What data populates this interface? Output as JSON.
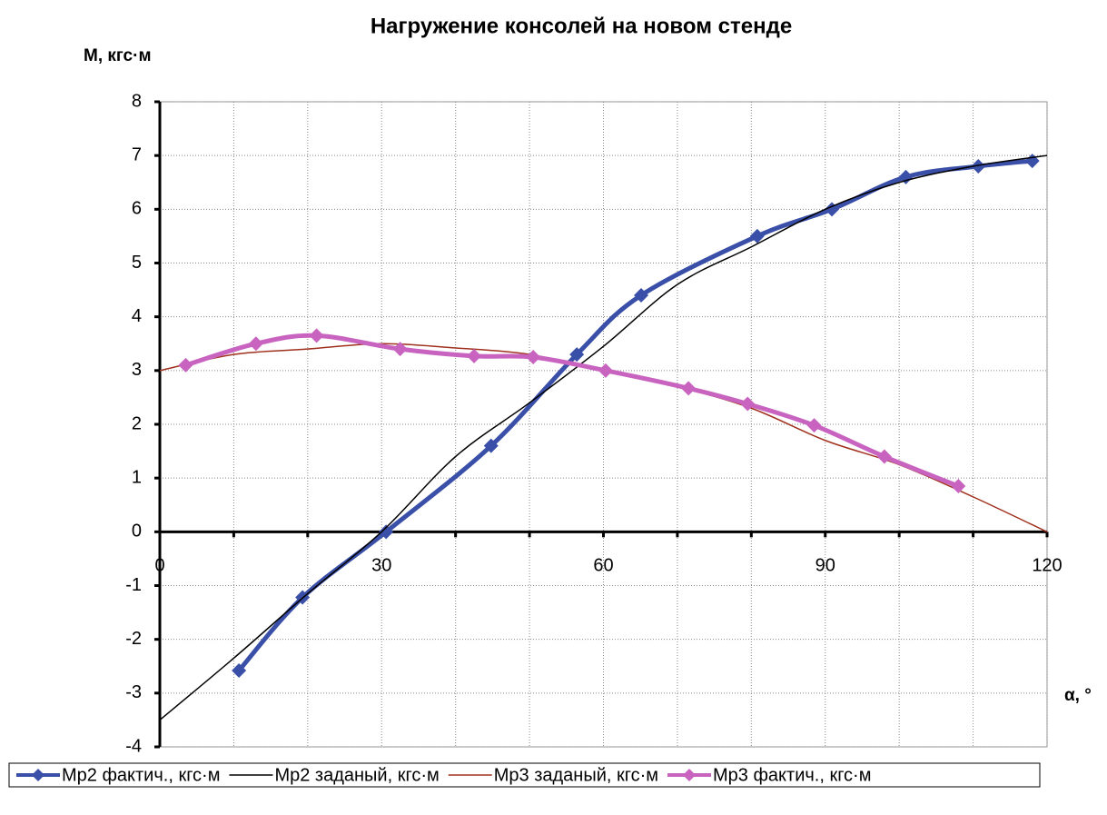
{
  "chart_data": {
    "type": "line",
    "title": "Нагружение консолей на новом стенде",
    "y_label": "М, кгс·м",
    "x_label": "α, °",
    "xlim": [
      0,
      120
    ],
    "xticks": [
      0,
      30,
      60,
      90,
      120
    ],
    "x_minor_ticks": [
      10,
      20,
      40,
      50,
      70,
      80,
      100,
      110
    ],
    "ylim": [
      -4,
      8
    ],
    "yticks": [
      -4,
      -3,
      -2,
      -1,
      0,
      1,
      2,
      3,
      4,
      5,
      6,
      7,
      8
    ],
    "grid": true,
    "legend": "bottom",
    "series": [
      {
        "name": "Мр2 фактич., кгс·м",
        "color": "#3a4fa8",
        "width": 5,
        "marker": "diamond",
        "x": [
          10.7,
          19.3,
          30.6,
          44.8,
          56.4,
          65.1,
          80.8,
          90.9,
          100.9,
          110.7,
          118
        ],
        "values": [
          -2.58,
          -1.22,
          0,
          1.6,
          3.3,
          4.4,
          5.5,
          6.0,
          6.6,
          6.8,
          6.9
        ]
      },
      {
        "name": "Мр2 заданый, кгс·м",
        "color": "#000000",
        "width": 1.5,
        "marker": null,
        "x": [
          0,
          10,
          20,
          30,
          40,
          50,
          60,
          70,
          80,
          90,
          100,
          110,
          120
        ],
        "values": [
          -3.5,
          -2.35,
          -1.15,
          0,
          1.4,
          2.4,
          3.45,
          4.6,
          5.3,
          6.0,
          6.5,
          6.8,
          7.0
        ]
      },
      {
        "name": "Мр3 заданый, кгс·м",
        "color": "#a0301e",
        "width": 1.5,
        "marker": null,
        "x": [
          0,
          10,
          20,
          30,
          40,
          50,
          60,
          70,
          80,
          90,
          100,
          110,
          120
        ],
        "values": [
          3.0,
          3.3,
          3.4,
          3.5,
          3.42,
          3.3,
          3.0,
          2.7,
          2.3,
          1.7,
          1.25,
          0.65,
          0
        ]
      },
      {
        "name": "Мр3 фактич., кгс·м",
        "color": "#c864c0",
        "width": 5,
        "marker": "diamond",
        "x": [
          3.5,
          13,
          21.2,
          32.5,
          42.5,
          50.5,
          60.3,
          71.5,
          79.5,
          88.5,
          98,
          108
        ],
        "values": [
          3.1,
          3.5,
          3.65,
          3.4,
          3.27,
          3.25,
          3.0,
          2.67,
          2.38,
          1.98,
          1.4,
          0.85
        ]
      }
    ]
  }
}
